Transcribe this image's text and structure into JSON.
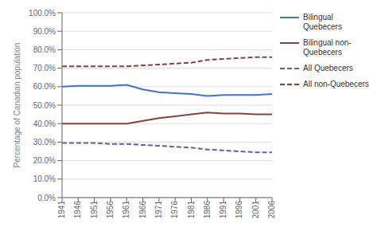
{
  "chart_data": {
    "type": "line",
    "y_label": "Percentage of Canadian population",
    "x": [
      1941,
      1946,
      1951,
      1956,
      1961,
      1966,
      1971,
      1976,
      1981,
      1986,
      1991,
      1996,
      2001,
      2006
    ],
    "xlim": [
      1941,
      2006
    ],
    "xticks": [
      1941,
      1946,
      1951,
      1956,
      1961,
      1966,
      1971,
      1976,
      1981,
      1986,
      1991,
      1996,
      2001,
      2006
    ],
    "ylim": [
      0,
      100
    ],
    "yticks": [
      {
        "value": 0,
        "label": "0.0%"
      },
      {
        "value": 10,
        "label": "10.0%"
      },
      {
        "value": 20,
        "label": "20.0%"
      },
      {
        "value": 30,
        "label": "30.0%"
      },
      {
        "value": 40,
        "label": "40.0%"
      },
      {
        "value": 50,
        "label": "50.0%"
      },
      {
        "value": 60,
        "label": "60.0%"
      },
      {
        "value": 70,
        "label": "70.0%"
      },
      {
        "value": 80,
        "label": "80.0%"
      },
      {
        "value": 90,
        "label": "90.0%"
      },
      {
        "value": 100,
        "label": "100.0%"
      }
    ],
    "grid": true,
    "legend": "right",
    "series": [
      {
        "name": "Bilingual Quebecers",
        "color": "#4472C4",
        "line_style": "solid",
        "values": [
          60.0,
          60.5,
          60.5,
          60.5,
          61.0,
          58.5,
          57.0,
          56.5,
          56.0,
          55.0,
          55.5,
          55.5,
          55.5,
          56.0
        ]
      },
      {
        "name": "Bilingual non-\nQuebecers",
        "color": "#8B4040",
        "line_style": "solid",
        "values": [
          40.0,
          40.0,
          40.0,
          40.0,
          40.0,
          41.5,
          43.0,
          44.0,
          45.0,
          46.0,
          45.5,
          45.5,
          45.0,
          45.0
        ]
      },
      {
        "name": "All Quebecers",
        "color": "#6060A0",
        "line_style": "dashed",
        "values": [
          29.5,
          29.5,
          29.5,
          29.0,
          29.0,
          28.5,
          28.0,
          27.5,
          27.0,
          26.0,
          25.5,
          25.0,
          24.5,
          24.5
        ]
      },
      {
        "name": "All non-Quebecers",
        "color": "#8B4040",
        "line_style": "dashed",
        "values": [
          71.0,
          71.0,
          71.0,
          71.0,
          71.0,
          71.5,
          72.0,
          72.5,
          73.0,
          74.5,
          75.0,
          75.5,
          76.0,
          76.0
        ]
      }
    ]
  }
}
